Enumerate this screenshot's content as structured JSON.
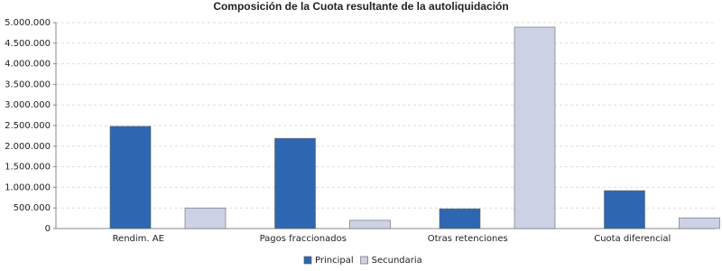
{
  "chart_data": {
    "type": "bar",
    "title": "Composición de la Cuota resultante de la autoliquidación",
    "categories": [
      "Rendim. AE",
      "Pagos fraccionados",
      "Otras retenciones",
      "Cuota diferencial"
    ],
    "series": [
      {
        "name": "Principal",
        "color": "#2e67b1",
        "values": [
          2480000,
          2190000,
          480000,
          920000
        ]
      },
      {
        "name": "Secundaria",
        "color": "#cdd1e6",
        "values": [
          500000,
          200000,
          4890000,
          260000
        ]
      }
    ],
    "ylim": [
      0,
      5000000
    ],
    "yticks": [
      0,
      {
        "value": 500000,
        "label": "500.000"
      },
      {
        "value": 1000000,
        "label": "1.000.000"
      },
      {
        "value": 1500000,
        "label": "1.500.000"
      },
      {
        "value": 2000000,
        "label": "2.000.000"
      },
      {
        "value": 2500000,
        "label": "2.500.000"
      },
      {
        "value": 3000000,
        "label": "3.000.000"
      },
      {
        "value": 3500000,
        "label": "3.500.000"
      },
      {
        "value": 4000000,
        "label": "4.000.000"
      },
      {
        "value": 4500000,
        "label": "4.500.000"
      },
      {
        "value": 5000000,
        "label": "5.000.000"
      }
    ],
    "grid": true,
    "legend": "bottom"
  }
}
